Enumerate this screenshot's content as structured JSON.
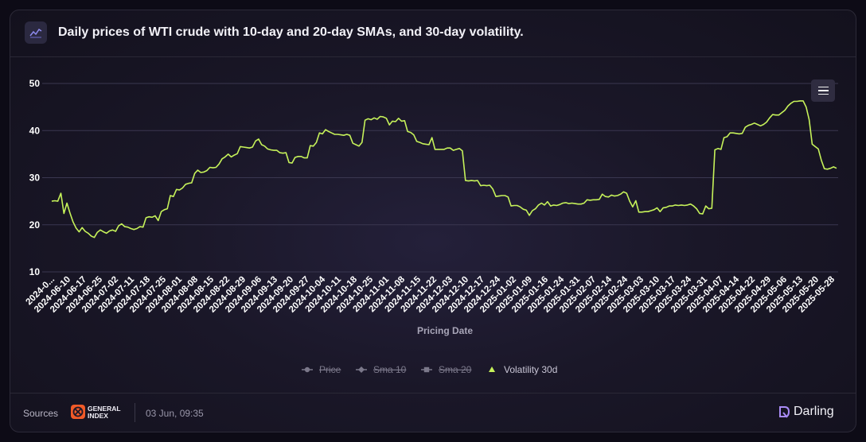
{
  "header": {
    "icon": "line-chart-icon",
    "title": "Daily prices of WTI crude with 10-day and 20-day SMAs, and 30-day volatility."
  },
  "colors": {
    "volatility": "#c6f25a",
    "legend_inactive": "#7b788a",
    "legend_active": "#c9c6d6",
    "grid": "#3a3750",
    "axis_text": "#ffffff"
  },
  "chart_data": {
    "type": "line",
    "xlabel": "Pricing Date",
    "ylabel": "",
    "ylim": [
      10,
      52
    ],
    "yticks": [
      10,
      20,
      30,
      40,
      50
    ],
    "grid": true,
    "legend_position": "bottom-center",
    "x_tick_labels": [
      "2024-0...",
      "2024-06-10",
      "2024-06-17",
      "2024-06-25",
      "2024-07-02",
      "2024-07-11",
      "2024-07-18",
      "2024-07-25",
      "2024-08-01",
      "2024-08-08",
      "2024-08-15",
      "2024-08-22",
      "2024-08-29",
      "2024-09-06",
      "2024-09-13",
      "2024-09-20",
      "2024-09-27",
      "2024-10-04",
      "2024-10-11",
      "2024-10-18",
      "2024-10-25",
      "2024-11-01",
      "2024-11-08",
      "2024-11-15",
      "2024-11-22",
      "2024-12-03",
      "2024-12-10",
      "2024-12-17",
      "2024-12-24",
      "2025-01-02",
      "2025-01-09",
      "2025-01-16",
      "2025-01-24",
      "2025-01-31",
      "2025-02-07",
      "2025-02-14",
      "2025-02-24",
      "2025-03-03",
      "2025-03-10",
      "2025-03-17",
      "2025-03-24",
      "2025-03-31",
      "2025-04-07",
      "2025-04-14",
      "2025-04-22",
      "2025-04-29",
      "2025-05-06",
      "2025-05-13",
      "2025-05-20",
      "2025-05-28"
    ],
    "series": [
      {
        "name": "Price",
        "visible": false,
        "values": []
      },
      {
        "name": "Sma 10",
        "visible": false,
        "values": []
      },
      {
        "name": "Sma 20",
        "visible": false,
        "values": []
      },
      {
        "name": "Volatility 30d",
        "visible": true,
        "values": [
          25.0,
          25.1,
          25.0,
          26.7,
          22.4,
          24.6,
          22.5,
          20.6,
          19.3,
          18.5,
          19.4,
          18.6,
          18.2,
          17.6,
          17.3,
          18.4,
          18.9,
          18.5,
          18.2,
          18.7,
          18.9,
          18.6,
          19.8,
          20.2,
          19.6,
          19.5,
          19.2,
          19.0,
          19.2,
          19.6,
          19.5,
          21.5,
          21.7,
          21.6,
          21.9,
          20.9,
          22.8,
          23.2,
          23.4,
          26.2,
          26.0,
          27.5,
          27.4,
          27.8,
          28.6,
          28.8,
          28.9,
          30.9,
          31.6,
          31.1,
          31.2,
          31.5,
          32.2,
          32.1,
          32.2,
          32.9,
          34.0,
          34.4,
          35.0,
          34.4,
          34.8,
          35.1,
          36.6,
          36.5,
          36.4,
          36.3,
          36.5,
          37.8,
          38.2,
          37.0,
          36.7,
          36.1,
          35.9,
          35.8,
          35.8,
          35.3,
          35.2,
          35.3,
          33.2,
          33.1,
          34.3,
          34.5,
          34.5,
          34.2,
          34.2,
          36.8,
          36.7,
          37.5,
          39.5,
          39.3,
          40.2,
          39.8,
          39.5,
          39.2,
          39.2,
          39.1,
          39.0,
          39.2,
          39.0,
          37.3,
          37.0,
          36.7,
          37.5,
          42.2,
          42.5,
          42.3,
          42.7,
          42.4,
          43.0,
          42.9,
          42.6,
          41.2,
          42.0,
          41.9,
          42.6,
          42.0,
          42.1,
          39.8,
          39.6,
          39.1,
          37.7,
          37.5,
          37.2,
          37.1,
          37.0,
          38.5,
          36.0,
          36.0,
          36.0,
          36.0,
          36.3,
          36.3,
          35.8,
          36.0,
          36.2,
          35.7,
          29.4,
          29.3,
          29.4,
          29.3,
          29.4,
          28.3,
          28.4,
          28.3,
          28.4,
          27.6,
          26.0,
          26.1,
          26.2,
          26.2,
          25.9,
          24.0,
          24.1,
          24.1,
          23.8,
          23.3,
          23.1,
          22.0,
          23.0,
          23.4,
          24.2,
          24.6,
          24.2,
          24.9,
          24.0,
          24.2,
          24.1,
          24.3,
          24.6,
          24.7,
          24.5,
          24.6,
          24.5,
          24.4,
          24.4,
          24.6,
          25.3,
          25.2,
          25.3,
          25.3,
          25.4,
          26.5,
          26.0,
          25.9,
          26.3,
          26.1,
          26.2,
          26.5,
          27.0,
          26.7,
          25.0,
          23.8,
          25.1,
          22.7,
          22.7,
          22.8,
          22.8,
          23.0,
          23.2,
          23.6,
          22.8,
          23.6,
          23.7,
          24.0,
          24.0,
          24.2,
          24.1,
          24.2,
          24.1,
          24.2,
          24.4,
          24.0,
          23.4,
          22.4,
          22.3,
          24.0,
          23.4,
          23.5,
          35.9,
          36.2,
          36.0,
          38.5,
          38.7,
          39.5,
          39.5,
          39.4,
          39.3,
          39.4,
          40.7,
          41.1,
          41.3,
          41.6,
          41.3,
          41.0,
          41.3,
          41.8,
          42.7,
          43.4,
          43.3,
          43.3,
          43.8,
          44.3,
          45.2,
          45.8,
          46.2,
          46.2,
          46.3,
          46.3,
          45.0,
          42.3,
          37.1,
          36.6,
          36.1,
          33.7,
          31.9,
          31.8,
          32.0,
          32.3,
          32.0
        ]
      }
    ]
  },
  "legend": {
    "items": [
      {
        "label": "Price",
        "marker": "circle",
        "active": false
      },
      {
        "label": "Sma 10",
        "marker": "diamond",
        "active": false
      },
      {
        "label": "Sma 20",
        "marker": "square",
        "active": false
      },
      {
        "label": "Volatility 30d",
        "marker": "triangle",
        "active": true
      }
    ]
  },
  "toolbar": {
    "menu_icon": "hamburger-menu-icon"
  },
  "footer": {
    "sources_label": "Sources",
    "source_logo_icon": "general-index-logo",
    "source_name_line1": "GENERAL",
    "source_name_line2": "INDEX",
    "timestamp": "03 Jun, 09:35",
    "brand_icon": "darling-logo-icon",
    "brand_name": "Darling"
  }
}
